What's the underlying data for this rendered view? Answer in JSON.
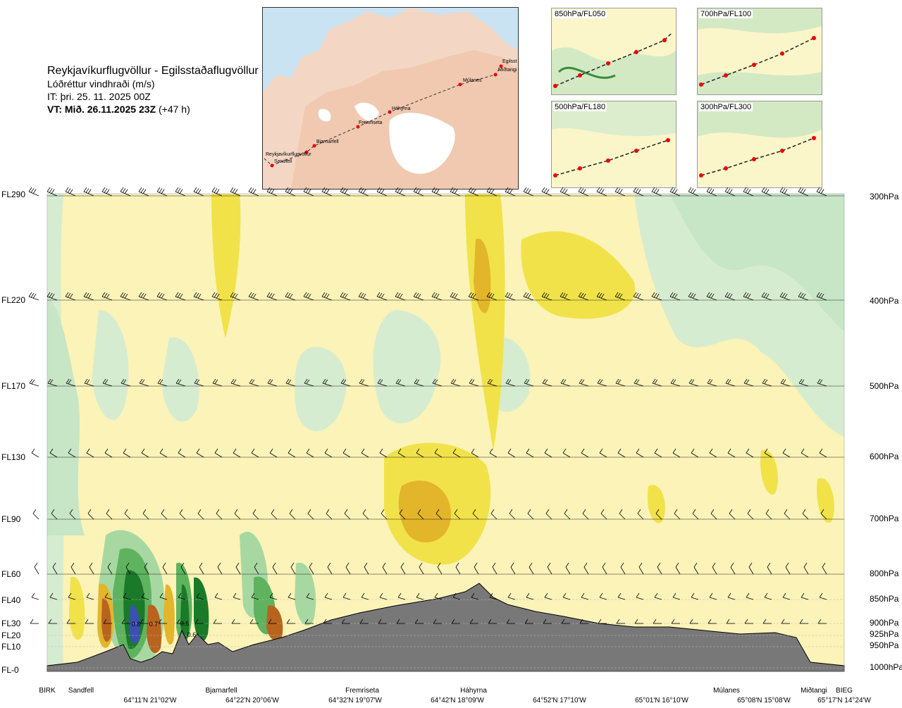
{
  "header": {
    "title": "Reykjavíkurflugvöllur - Egilsstaðaflugvöllur",
    "subtitle": "Lóðréttur vindhraði (m/s)",
    "issue_time": "IT: þri. 25. 11. 2025 00Z",
    "valid_time_bold": "VT: Mið. 26.11.2025 23Z",
    "valid_time_offset": "(+47 h)"
  },
  "map": {
    "stations": [
      "Reykjavíkurflugvöllur",
      "Sandfell",
      "Bjarnarfell",
      "Fremriseta",
      "Háhyrna",
      "Múlanes",
      "Egilsst",
      "Miðtangi"
    ]
  },
  "thumbnails": [
    {
      "label": "850hPa/FL050"
    },
    {
      "label": "700hPa/FL100"
    },
    {
      "label": "500hPa/FL180"
    },
    {
      "label": "300hPa/FL300"
    }
  ],
  "chart_data": {
    "type": "heatmap",
    "title": "Lóðréttur vindhraði (m/s)",
    "levels_left": [
      "FL290",
      "FL220",
      "FL170",
      "FL130",
      "FL90",
      "FL60",
      "FL40",
      "FL30",
      "FL20",
      "FL10",
      "FL-0"
    ],
    "levels_right": [
      "300hPa",
      "400hPa",
      "500hPa",
      "600hPa",
      "700hPa",
      "800hPa",
      "850hPa",
      "900hPa",
      "925hPa",
      "950hPa",
      "1000hPa"
    ],
    "pressure_hpa": [
      300,
      400,
      500,
      600,
      700,
      800,
      850,
      900,
      925,
      950,
      1000
    ],
    "x_labels": [
      "BIRK",
      "Sandfell",
      "Bjarnarfell",
      "Fremriseta",
      "Háhyrna",
      "Múlanes",
      "Miðtangi",
      "BIEG"
    ],
    "x_coords": [
      "64°11'N 21°02'W",
      "64°22'N 20°06'W",
      "64°32'N 19°07'W",
      "64°42'N 18°09'W",
      "64°52'N 17°10'W",
      "65°01'N 16°10'W",
      "65°08'N 15°08'W",
      "65°17'N 14°24'W"
    ],
    "annotations": [
      "0.8",
      "0.7",
      "0.6",
      "0.6"
    ],
    "colors": {
      "strong_up": "#1a7a2a",
      "mid_up": "#5fb35f",
      "weak_up": "#c6e6c6",
      "neutral": "#fbf3b8",
      "weak_down": "#f1e24a",
      "mid_down": "#e3b52a",
      "strong_down": "#b8641e",
      "terrain": "#787878"
    }
  }
}
